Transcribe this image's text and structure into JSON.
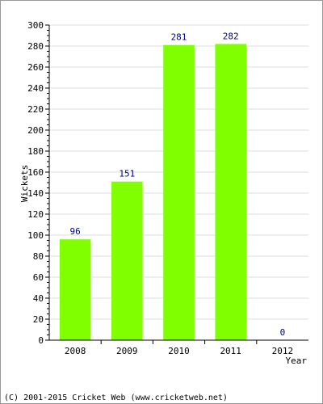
{
  "chart_data": {
    "type": "bar",
    "categories": [
      "2008",
      "2009",
      "2010",
      "2011",
      "2012"
    ],
    "values": [
      96,
      151,
      281,
      282,
      0
    ],
    "data_labels": [
      "96",
      "151",
      "281",
      "282",
      "0"
    ],
    "xlabel": "Year",
    "ylabel": "Wickets",
    "ylim": [
      0,
      300
    ],
    "yticks": [
      0,
      20,
      40,
      60,
      80,
      100,
      120,
      140,
      160,
      180,
      200,
      220,
      240,
      260,
      280,
      300
    ],
    "grid": true,
    "bar_color": "#80ff00",
    "label_color": "#000080"
  },
  "footer": {
    "copyright": "(C) 2001-2015 Cricket Web (www.cricketweb.net)"
  }
}
